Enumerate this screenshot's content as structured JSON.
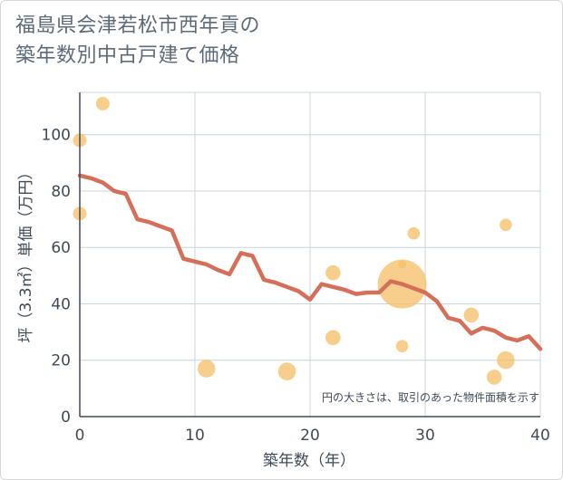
{
  "chart_data": {
    "type": "scatter",
    "title": "福島県会津若松市西年貢の\n築年数別中古戸建て価格",
    "xlabel": "築年数（年）",
    "ylabel": "坪（3.3㎡）単価（万円）",
    "xlim": [
      0,
      40
    ],
    "ylim": [
      0,
      115
    ],
    "xticks": [
      "0",
      "10",
      "20",
      "30",
      "40"
    ],
    "yticks": [
      "0",
      "20",
      "40",
      "60",
      "80",
      "100"
    ],
    "grid": true,
    "note": "円の大きさは、取引のあった物件面積を示す",
    "colors": {
      "points": "#f5c06a",
      "line": "#d4705a",
      "grid": "#c8d4e0",
      "axis": "#404a56"
    },
    "points": [
      {
        "x": 0,
        "y": 98,
        "size": 1
      },
      {
        "x": 0,
        "y": 72,
        "size": 1
      },
      {
        "x": 2,
        "y": 111,
        "size": 1
      },
      {
        "x": 11,
        "y": 17,
        "size": 1.3
      },
      {
        "x": 18,
        "y": 16,
        "size": 1.3
      },
      {
        "x": 22,
        "y": 51,
        "size": 1.1
      },
      {
        "x": 22,
        "y": 28,
        "size": 1.1
      },
      {
        "x": 28,
        "y": 47,
        "size": 3.6
      },
      {
        "x": 28,
        "y": 54,
        "size": 0.6
      },
      {
        "x": 28,
        "y": 25,
        "size": 0.9
      },
      {
        "x": 29,
        "y": 65,
        "size": 0.9
      },
      {
        "x": 34,
        "y": 36,
        "size": 1.1
      },
      {
        "x": 36,
        "y": 14,
        "size": 1.1
      },
      {
        "x": 37,
        "y": 68,
        "size": 0.9
      },
      {
        "x": 37,
        "y": 20,
        "size": 1.3
      }
    ],
    "trend": {
      "x": [
        0,
        1,
        2,
        3,
        4,
        5,
        6,
        7,
        8,
        9,
        10,
        11,
        12,
        13,
        14,
        15,
        16,
        17,
        18,
        19,
        20,
        21,
        22,
        23,
        24,
        25,
        26,
        27,
        28,
        29,
        30,
        31,
        32,
        33,
        34,
        35,
        36,
        37,
        38,
        39,
        40
      ],
      "y": [
        85.5,
        84.5,
        83,
        80,
        79,
        70,
        69,
        67.5,
        66,
        56,
        55,
        54,
        52,
        50.5,
        58,
        57,
        48.5,
        47.5,
        46,
        44.5,
        41.5,
        47,
        46,
        45,
        43.5,
        44,
        44,
        48,
        47,
        45.5,
        44,
        41,
        35,
        34,
        29.5,
        31.5,
        30.5,
        28,
        27,
        28.5,
        24
      ]
    }
  }
}
